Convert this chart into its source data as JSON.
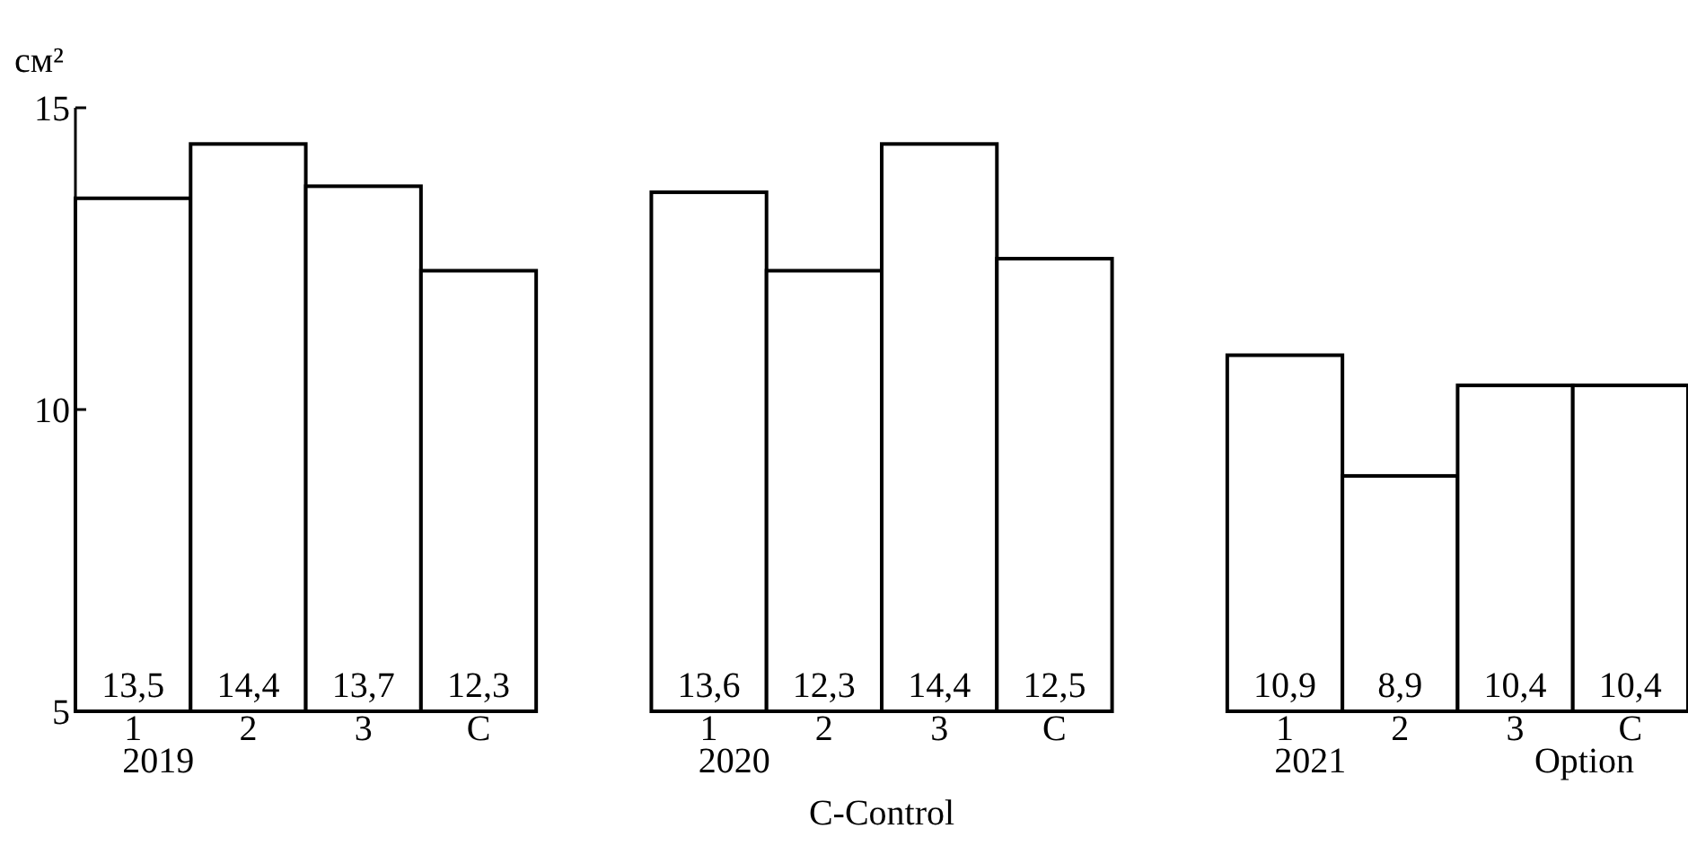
{
  "chart_data": {
    "type": "bar",
    "ylabel": "см²",
    "categories": [
      "1",
      "2",
      "3",
      "C",
      null,
      "1",
      "2",
      "3",
      "C",
      null,
      "1",
      "2",
      "3",
      "C"
    ],
    "values": [
      13.5,
      14.4,
      13.7,
      12.3,
      null,
      13.6,
      12.3,
      14.4,
      12.5,
      null,
      10.9,
      8.9,
      10.4,
      10.4
    ],
    "value_labels": [
      "13,5",
      "14,4",
      "13,7",
      "12,3",
      null,
      "13,6",
      "12,3",
      "14,4",
      "12,5",
      null,
      "10,9",
      "8,9",
      "10,4",
      "10,4"
    ],
    "color": "#ffffff",
    "ylim": [
      5,
      15
    ],
    "yticks": [
      5,
      10,
      15
    ],
    "grid": false,
    "annotations": [
      "2019",
      "2020",
      "2021",
      "Option",
      "C-Control"
    ]
  }
}
